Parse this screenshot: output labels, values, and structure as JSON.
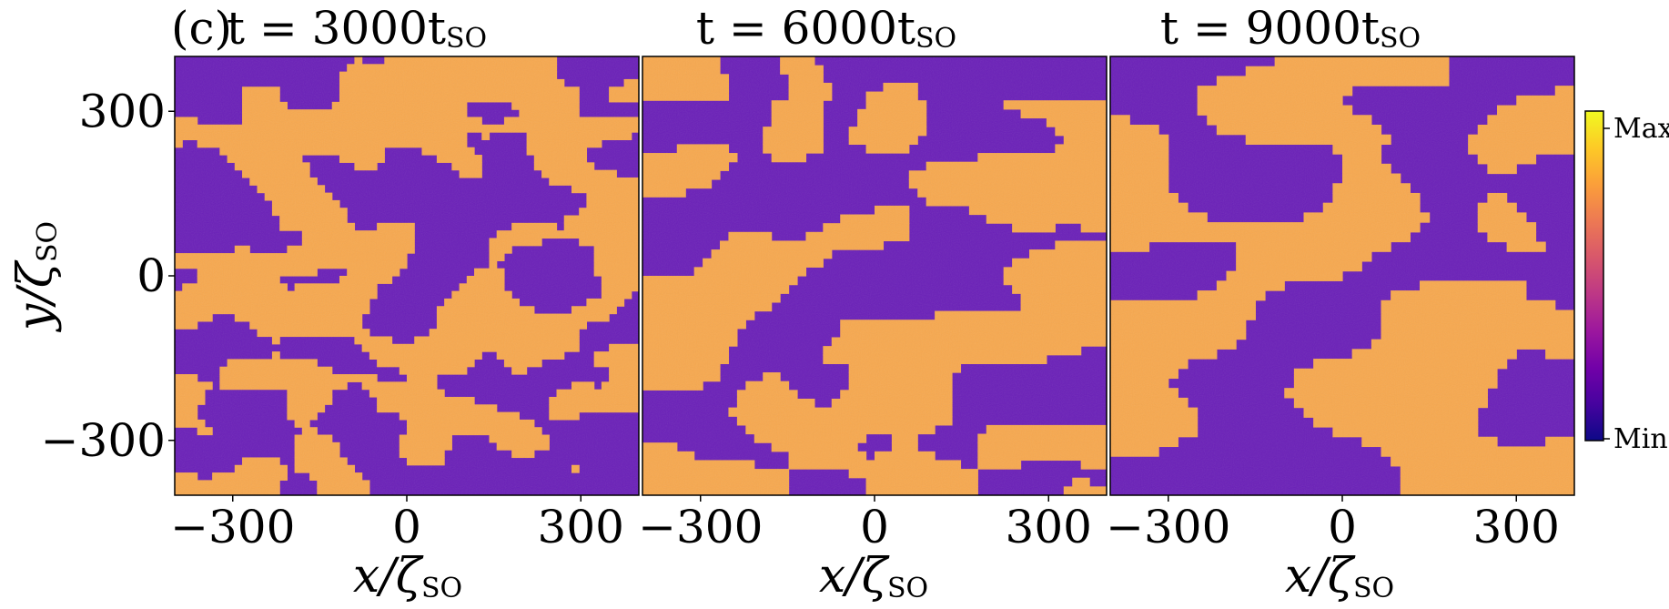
{
  "figure": {
    "panel_tag": "(c)",
    "ylabel": "y/ζ",
    "ylabel_sub": "SO",
    "xlabel": "x/ζ",
    "xlabel_sub": "SO"
  },
  "colorbar": {
    "max_label": "Max",
    "min_label": "Min",
    "colormap": "plasma",
    "colors": [
      "#0d0887",
      "#46039f",
      "#7201a8",
      "#9c179e",
      "#bd3786",
      "#d8576b",
      "#ed7953",
      "#fb9f3a",
      "#fdca26",
      "#f0f921"
    ]
  },
  "colors": {
    "low_phase": "#6a1fb8",
    "high_phase": "#f7a84e"
  },
  "chart_data": [
    {
      "type": "heatmap",
      "title": "t = 3000t",
      "title_sub": "SO",
      "xlim": [
        -400,
        400
      ],
      "ylim": [
        -400,
        400
      ],
      "xticks": [
        -300,
        0,
        300
      ],
      "yticks": [
        -300,
        0,
        300
      ],
      "xtick_labels": [
        "−300",
        "0",
        "300"
      ],
      "ytick_labels": [
        "−300",
        "0",
        "300"
      ],
      "value_range": [
        "Min",
        "Max"
      ],
      "high_phase_fraction": 0.5
    },
    {
      "type": "heatmap",
      "title": "t = 6000t",
      "title_sub": "SO",
      "xlim": [
        -400,
        400
      ],
      "ylim": [
        -400,
        400
      ],
      "xticks": [
        -300,
        0,
        300
      ],
      "xtick_labels": [
        "−300",
        "0",
        "300"
      ],
      "value_range": [
        "Min",
        "Max"
      ],
      "high_phase_fraction": 0.5
    },
    {
      "type": "heatmap",
      "title": "t = 9000t",
      "title_sub": "SO",
      "xlim": [
        -400,
        400
      ],
      "ylim": [
        -400,
        400
      ],
      "xticks": [
        -300,
        0,
        300
      ],
      "xtick_labels": [
        "−300",
        "0",
        "300"
      ],
      "value_range": [
        "Min",
        "Max"
      ],
      "high_phase_fraction": 0.5
    }
  ]
}
